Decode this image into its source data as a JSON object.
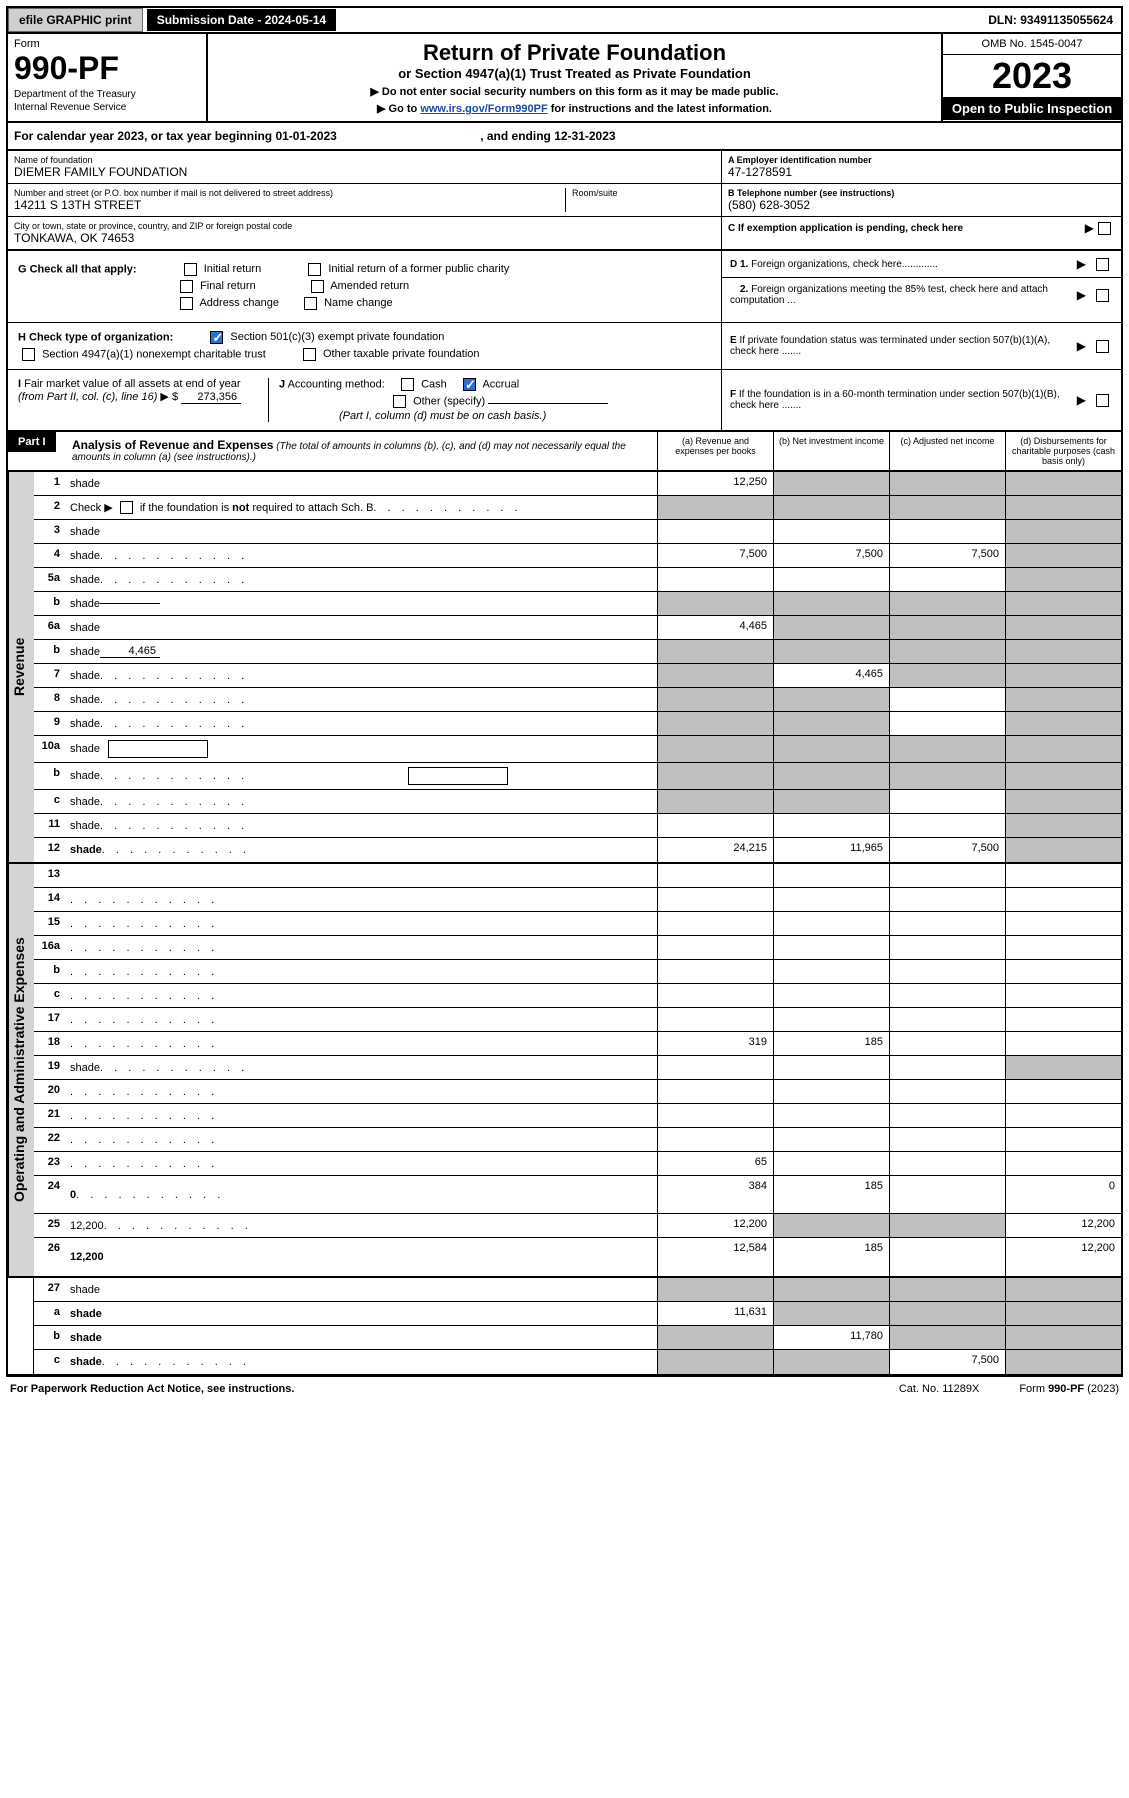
{
  "colors": {
    "black": "#000000",
    "white": "#ffffff",
    "gray_btn": "#cfcfcf",
    "gray_shade": "#bfbfbf",
    "gray_side": "#d4d4d4",
    "link": "#1a4aa8",
    "check_blue": "#2a6fd6"
  },
  "topbar": {
    "efile": "efile GRAPHIC print",
    "subdate": "Submission Date - 2024-05-14",
    "dln": "DLN: 93491135055624"
  },
  "header": {
    "form_label": "Form",
    "form_number": "990-PF",
    "dept1": "Department of the Treasury",
    "dept2": "Internal Revenue Service",
    "title": "Return of Private Foundation",
    "subtitle": "or Section 4947(a)(1) Trust Treated as Private Foundation",
    "instr1": "▶ Do not enter social security numbers on this form as it may be made public.",
    "instr2_pre": "▶ Go to ",
    "instr2_link": "www.irs.gov/Form990PF",
    "instr2_post": " for instructions and the latest information.",
    "omb": "OMB No. 1545-0047",
    "year": "2023",
    "open": "Open to Public Inspection"
  },
  "calendar": {
    "text_pre": "For calendar year 2023, or tax year beginning ",
    "begin": "01-01-2023",
    "text_mid": " , and ending ",
    "end": "12-31-2023"
  },
  "info": {
    "name_lbl": "Name of foundation",
    "name": "DIEMER FAMILY FOUNDATION",
    "addr_lbl": "Number and street (or P.O. box number if mail is not delivered to street address)",
    "addr": "14211 S 13TH STREET",
    "room_lbl": "Room/suite",
    "city_lbl": "City or town, state or province, country, and ZIP or foreign postal code",
    "city": "TONKAWA, OK  74653",
    "ein_lbl": "A Employer identification number",
    "ein": "47-1278591",
    "tel_lbl": "B Telephone number (see instructions)",
    "tel": "(580) 628-3052",
    "c_lbl": "C If exemption application is pending, check here"
  },
  "checks": {
    "g_lbl": "G Check all that apply:",
    "g_opts": [
      "Initial return",
      "Initial return of a former public charity",
      "Final return",
      "Amended return",
      "Address change",
      "Name change"
    ],
    "h_lbl": "H Check type of organization:",
    "h1": "Section 501(c)(3) exempt private foundation",
    "h2": "Section 4947(a)(1) nonexempt charitable trust",
    "h3": "Other taxable private foundation",
    "i_lbl": "I Fair market value of all assets at end of year (from Part II, col. (c), line 16) ▶ $",
    "i_val": "273,356",
    "j_lbl": "J Accounting method:",
    "j_cash": "Cash",
    "j_accrual": "Accrual",
    "j_other": "Other (specify)",
    "j_note": "(Part I, column (d) must be on cash basis.)",
    "d1": "D 1. Foreign organizations, check here.............",
    "d2": "2. Foreign organizations meeting the 85% test, check here and attach computation ...",
    "e": "E  If private foundation status was terminated under section 507(b)(1)(A), check here .......",
    "f": "F  If the foundation is in a 60-month termination under section 507(b)(1)(B), check here .......",
    "arrow": "▶"
  },
  "part1": {
    "label": "Part I",
    "title": "Analysis of Revenue and Expenses",
    "note": " (The total of amounts in columns (b), (c), and (d) may not necessarily equal the amounts in column (a) (see instructions).)",
    "col_a": "(a)  Revenue and expenses per books",
    "col_b": "(b)  Net investment income",
    "col_c": "(c)  Adjusted net income",
    "col_d": "(d)  Disbursements for charitable purposes (cash basis only)"
  },
  "side_labels": {
    "rev": "Revenue",
    "exp": "Operating and Administrative Expenses"
  },
  "lines": [
    {
      "n": "1",
      "d": "shade",
      "a": "12,250",
      "b": "shade",
      "c": "shade"
    },
    {
      "n": "2",
      "d": "shade",
      "dots": true,
      "a": "shade",
      "b": "shade",
      "c": "shade",
      "bold_not": true
    },
    {
      "n": "3",
      "d": "shade",
      "a": "",
      "b": "",
      "c": ""
    },
    {
      "n": "4",
      "d": "shade",
      "dots": true,
      "a": "7,500",
      "b": "7,500",
      "c": "7,500"
    },
    {
      "n": "5a",
      "d": "shade",
      "dots": true,
      "a": "",
      "b": "",
      "c": ""
    },
    {
      "n": "b",
      "d": "shade",
      "inline": "",
      "a": "shade",
      "b": "shade",
      "c": "shade"
    },
    {
      "n": "6a",
      "d": "shade",
      "a": "4,465",
      "b": "shade",
      "c": "shade"
    },
    {
      "n": "b",
      "d": "shade",
      "inline": "4,465",
      "a": "shade",
      "b": "shade",
      "c": "shade"
    },
    {
      "n": "7",
      "d": "shade",
      "dots": true,
      "a": "shade",
      "b": "4,465",
      "c": "shade"
    },
    {
      "n": "8",
      "d": "shade",
      "dots": true,
      "a": "shade",
      "b": "shade",
      "c": ""
    },
    {
      "n": "9",
      "d": "shade",
      "dots": true,
      "a": "shade",
      "b": "shade",
      "c": ""
    },
    {
      "n": "10a",
      "d": "shade",
      "nested": true,
      "a": "shade",
      "b": "shade",
      "c": "shade"
    },
    {
      "n": "b",
      "d": "shade",
      "dots": true,
      "nested": true,
      "a": "shade",
      "b": "shade",
      "c": "shade"
    },
    {
      "n": "c",
      "d": "shade",
      "dots": true,
      "a": "shade",
      "b": "shade",
      "c": ""
    },
    {
      "n": "11",
      "d": "shade",
      "dots": true,
      "a": "",
      "b": "",
      "c": ""
    },
    {
      "n": "12",
      "d": "shade",
      "dots": true,
      "bold": true,
      "a": "24,215",
      "b": "11,965",
      "c": "7,500"
    }
  ],
  "exp_lines": [
    {
      "n": "13",
      "d": "",
      "a": "",
      "b": "",
      "c": ""
    },
    {
      "n": "14",
      "d": "",
      "dots": true,
      "a": "",
      "b": "",
      "c": ""
    },
    {
      "n": "15",
      "d": "",
      "dots": true,
      "a": "",
      "b": "",
      "c": ""
    },
    {
      "n": "16a",
      "d": "",
      "dots": true,
      "a": "",
      "b": "",
      "c": ""
    },
    {
      "n": "b",
      "d": "",
      "dots": true,
      "a": "",
      "b": "",
      "c": ""
    },
    {
      "n": "c",
      "d": "",
      "dots": true,
      "a": "",
      "b": "",
      "c": ""
    },
    {
      "n": "17",
      "d": "",
      "dots": true,
      "a": "",
      "b": "",
      "c": ""
    },
    {
      "n": "18",
      "d": "",
      "dots": true,
      "a": "319",
      "b": "185",
      "c": ""
    },
    {
      "n": "19",
      "d": "shade",
      "dots": true,
      "a": "",
      "b": "",
      "c": ""
    },
    {
      "n": "20",
      "d": "",
      "dots": true,
      "a": "",
      "b": "",
      "c": ""
    },
    {
      "n": "21",
      "d": "",
      "dots": true,
      "a": "",
      "b": "",
      "c": ""
    },
    {
      "n": "22",
      "d": "",
      "dots": true,
      "a": "",
      "b": "",
      "c": ""
    },
    {
      "n": "23",
      "d": "",
      "dots": true,
      "a": "65",
      "b": "",
      "c": ""
    },
    {
      "n": "24",
      "d": "0",
      "dots": true,
      "bold": true,
      "a": "384",
      "b": "185",
      "c": "",
      "tall": true
    },
    {
      "n": "25",
      "d": "12,200",
      "dots": true,
      "a": "12,200",
      "b": "shade",
      "c": "shade"
    },
    {
      "n": "26",
      "d": "12,200",
      "bold": true,
      "a": "12,584",
      "b": "185",
      "c": "",
      "tall": true
    }
  ],
  "net_lines": [
    {
      "n": "27",
      "d": "shade",
      "a": "shade",
      "b": "shade",
      "c": "shade"
    },
    {
      "n": "a",
      "d": "shade",
      "bold": true,
      "a": "11,631",
      "b": "shade",
      "c": "shade"
    },
    {
      "n": "b",
      "d": "shade",
      "bold": true,
      "a": "shade",
      "b": "11,780",
      "c": "shade"
    },
    {
      "n": "c",
      "d": "shade",
      "bold": true,
      "dots": true,
      "a": "shade",
      "b": "shade",
      "c": "7,500"
    }
  ],
  "footer": {
    "left": "For Paperwork Reduction Act Notice, see instructions.",
    "mid": "Cat. No. 11289X",
    "right": "Form 990-PF (2023)"
  }
}
